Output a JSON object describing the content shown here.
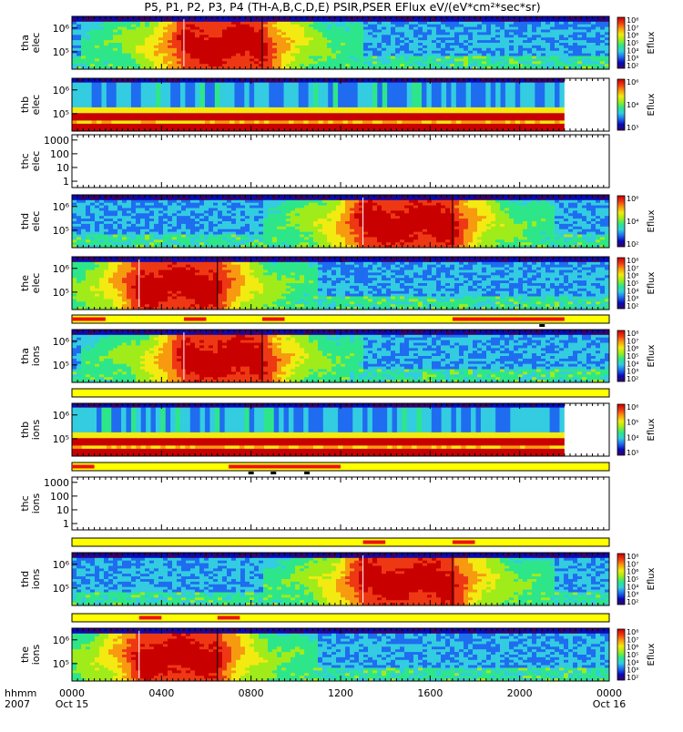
{
  "chart_data": {
    "type": "heatmap",
    "title": "P5, P1, P2, P3, P4 (TH-A,B,C,D,E) PSIR,PSER EFlux eV/(eV*cm²*sec*sr)",
    "x_axis": {
      "range_hours": [
        0,
        24
      ],
      "ticks": [
        {
          "hour": 0,
          "label": "0000"
        },
        {
          "hour": 4,
          "label": "0400"
        },
        {
          "hour": 8,
          "label": "0800"
        },
        {
          "hour": 12,
          "label": "1200"
        },
        {
          "hour": 16,
          "label": "1600"
        },
        {
          "hour": 20,
          "label": "2000"
        },
        {
          "hour": 24,
          "label": "0000"
        }
      ],
      "row_label": "hhmm",
      "year_label": "2007",
      "start_date_label": "Oct 15",
      "end_date_label": "Oct 16"
    },
    "colormap": [
      "#38006b",
      "#0a0ab4",
      "#1f6cf0",
      "#33cce0",
      "#2ee68a",
      "#a0ec1a",
      "#f2ea10",
      "#f79a10",
      "#ee3814",
      "#c80000"
    ],
    "colorbar_label": "Eflux",
    "panels": [
      {
        "key": "tha_elec",
        "label1": "tha",
        "label2": "elec",
        "log_scale": true,
        "y_ticks": [
          "10⁶",
          "10⁵"
        ],
        "colorbar_ticks": [
          "10⁸",
          "10⁷",
          "10⁶",
          "10⁵",
          "10⁴",
          "10³",
          "10²"
        ],
        "mode": "sheet",
        "data_end_hour": 24,
        "plasma_sheet_hours": [
          [
            5.0,
            8.5
          ]
        ]
      },
      {
        "key": "thb_elec",
        "label1": "thb",
        "label2": "elec",
        "log_scale": true,
        "y_ticks": [
          "10⁶",
          "10⁵"
        ],
        "colorbar_ticks": [
          "10⁶",
          "10⁴",
          "10³"
        ],
        "mode": "bands",
        "data_end_hour": 22
      },
      {
        "key": "thc_elec",
        "label1": "thc",
        "label2": "elec",
        "log_scale": true,
        "y_ticks": [
          "1000",
          "100",
          "10",
          "1"
        ],
        "colorbar_ticks": [],
        "mode": "empty",
        "data_end_hour": 24
      },
      {
        "key": "thd_elec",
        "label1": "thd",
        "label2": "elec",
        "log_scale": true,
        "y_ticks": [
          "10⁶",
          "10⁵"
        ],
        "colorbar_ticks": [
          "10⁶",
          "10⁴",
          "10²"
        ],
        "mode": "sheet",
        "data_end_hour": 24,
        "plasma_sheet_hours": [
          [
            13.0,
            17.0
          ]
        ]
      },
      {
        "key": "the_elec",
        "label1": "the",
        "label2": "elec",
        "log_scale": true,
        "y_ticks": [
          "10⁶",
          "10⁵"
        ],
        "colorbar_ticks": [
          "10⁸",
          "10⁷",
          "10⁶",
          "10⁵",
          "10⁴",
          "10³",
          "10²"
        ],
        "mode": "sheet",
        "data_end_hour": 24,
        "plasma_sheet_hours": [
          [
            3.0,
            6.5
          ]
        ]
      },
      {
        "key": "tha_ions",
        "label1": "tha",
        "label2": "ions",
        "log_scale": true,
        "y_ticks": [
          "10⁶",
          "10⁵"
        ],
        "colorbar_ticks": [
          "10⁸",
          "10⁷",
          "10⁶",
          "10⁵",
          "10⁴",
          "10³",
          "10²"
        ],
        "mode": "sheet",
        "data_end_hour": 24,
        "plasma_sheet_hours": [
          [
            5.0,
            8.5
          ]
        ]
      },
      {
        "key": "thb_ions",
        "label1": "thb",
        "label2": "ions",
        "log_scale": true,
        "y_ticks": [
          "10⁶",
          "10⁵"
        ],
        "colorbar_ticks": [
          "10⁶",
          "10⁵",
          "10⁴",
          "10³"
        ],
        "mode": "bands",
        "data_end_hour": 22
      },
      {
        "key": "thc_ions",
        "label1": "thc",
        "label2": "ions",
        "log_scale": true,
        "y_ticks": [
          "1000",
          "100",
          "10",
          "1"
        ],
        "colorbar_ticks": [],
        "mode": "empty",
        "data_end_hour": 24
      },
      {
        "key": "thd_ions",
        "label1": "thd",
        "label2": "ions",
        "log_scale": true,
        "y_ticks": [
          "10⁶",
          "10⁵"
        ],
        "colorbar_ticks": [
          "10⁸",
          "10⁷",
          "10⁶",
          "10⁵",
          "10⁴",
          "10³",
          "10²"
        ],
        "mode": "sheet",
        "data_end_hour": 24,
        "plasma_sheet_hours": [
          [
            13.0,
            17.0
          ]
        ]
      },
      {
        "key": "the_ions",
        "label1": "the",
        "label2": "ions",
        "log_scale": true,
        "y_ticks": [
          "10⁶",
          "10⁵"
        ],
        "colorbar_ticks": [
          "10⁸",
          "10⁷",
          "10⁶",
          "10⁵",
          "10⁴",
          "10³",
          "10²"
        ],
        "mode": "sheet",
        "data_end_hour": 24,
        "plasma_sheet_hours": [
          [
            3.0,
            6.5
          ]
        ]
      }
    ],
    "mode_bars": [
      {
        "after_panel": 4,
        "red_intervals_hours": [
          [
            0,
            1.5
          ],
          [
            5,
            6
          ],
          [
            8.5,
            9.5
          ],
          [
            17,
            22
          ]
        ],
        "markers_hours": [
          21
        ]
      },
      {
        "after_panel": 5,
        "red_intervals_hours": [],
        "markers_hours": []
      },
      {
        "after_panel": 6,
        "red_intervals_hours": [
          [
            0,
            1
          ],
          [
            7,
            12
          ]
        ],
        "markers_hours": [
          8,
          9,
          10.5
        ]
      },
      {
        "after_panel": 7,
        "red_intervals_hours": [
          [
            13,
            14
          ],
          [
            17,
            18
          ]
        ],
        "markers_hours": []
      },
      {
        "after_panel": 8,
        "red_intervals_hours": [
          [
            3,
            4
          ],
          [
            6.5,
            7.5
          ]
        ],
        "markers_hours": []
      }
    ]
  }
}
